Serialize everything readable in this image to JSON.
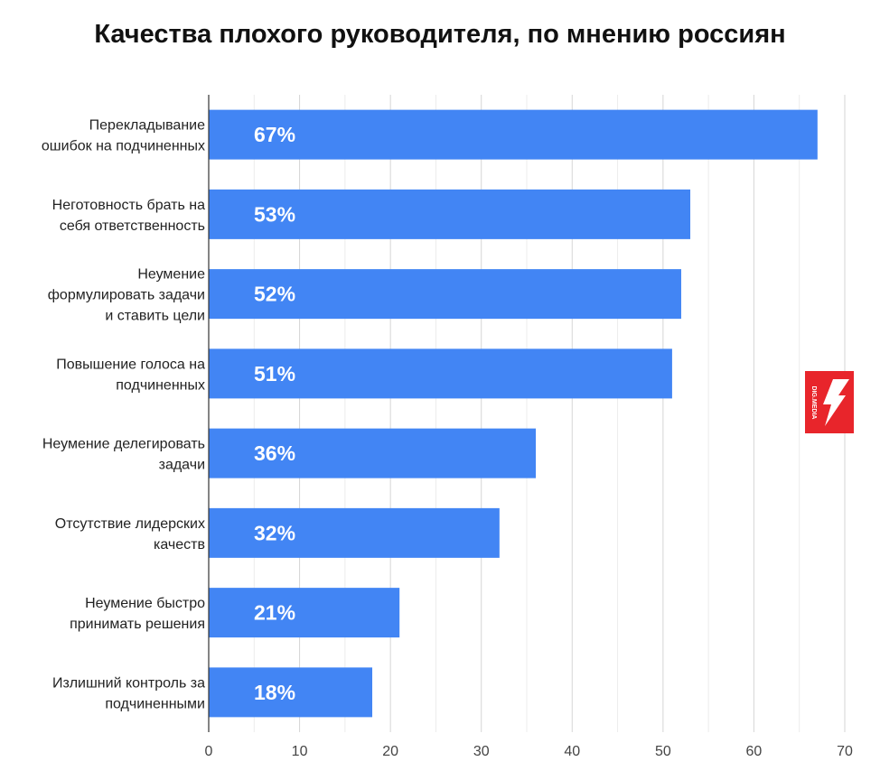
{
  "chart_data": {
    "type": "bar",
    "orientation": "horizontal",
    "title": "Качества плохого руководителя, по мнению россиян",
    "categories": [
      [
        "Перекладывание",
        "ошибок на подчиненных"
      ],
      [
        "Неготовность брать на",
        "себя ответственность"
      ],
      [
        "Неумение",
        "формулировать задачи",
        "и ставить цели"
      ],
      [
        "Повышение голоса на",
        "подчиненных"
      ],
      [
        "Неумение делегировать",
        "задачи"
      ],
      [
        "Отсутствие лидерских",
        "качеств"
      ],
      [
        "Неумение быстро",
        "принимать решения"
      ],
      [
        "Излишний контроль за",
        "подчиненными"
      ]
    ],
    "values": [
      67,
      53,
      52,
      51,
      36,
      32,
      21,
      18
    ],
    "data_labels": [
      "67%",
      "53%",
      "52%",
      "51%",
      "36%",
      "32%",
      "21%",
      "18%"
    ],
    "xlim": [
      0,
      70
    ],
    "xticks": [
      "0",
      "10",
      "20",
      "30",
      "40",
      "50",
      "60",
      "70"
    ],
    "xlabel": "",
    "ylabel": "",
    "grid": true,
    "bar_color": "#4285f4"
  },
  "logo": {
    "text": "DIG.MEDIA",
    "color": "#e8252b"
  }
}
